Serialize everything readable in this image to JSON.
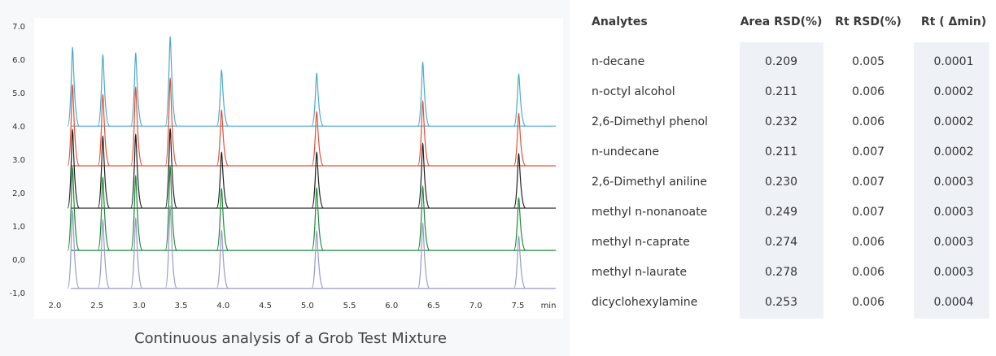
{
  "chart_data": {
    "type": "chromatogram",
    "caption": "Continuous analysis of a Grob Test Mixture",
    "x_label": "min",
    "xlim": [
      1.88,
      7.95
    ],
    "xticks": [
      {
        "value": 2,
        "label": "2.0"
      },
      2.5,
      {
        "value": 3,
        "label": "3.0"
      },
      3.5,
      {
        "value": 4,
        "label": "4.0"
      },
      4.5,
      {
        "value": 5,
        "label": "5.0"
      },
      5.5,
      {
        "value": 6,
        "label": "6.0"
      },
      6.5,
      {
        "value": 7,
        "label": "7.0"
      },
      7.5
    ],
    "ylim": [
      -1,
      7
    ],
    "yticks": [
      {
        "value": 7,
        "label": "7.0"
      },
      {
        "value": 6,
        "label": "6.0"
      },
      {
        "value": 5,
        "label": "5.0"
      },
      {
        "value": 4,
        "label": "4.0"
      },
      {
        "value": 3,
        "label": "3.0"
      },
      {
        "value": 2,
        "label": "2,0"
      },
      {
        "value": 1,
        "label": "1,0"
      },
      {
        "value": 0,
        "label": "0,0"
      },
      {
        "value": -1,
        "label": "-1,0"
      }
    ],
    "x": [
      2.21,
      2.57,
      2.96,
      3.37,
      3.98,
      5.11,
      6.37,
      7.51
    ],
    "series": [
      {
        "color": "#4fa9cc",
        "baseline": 4.02,
        "values": [
          6.39,
          6.17,
          6.22,
          6.71,
          5.71,
          5.61,
          5.95,
          5.59
        ]
      },
      {
        "color": "#e0533a",
        "baseline": 2.83,
        "values": [
          5.27,
          4.98,
          5.2,
          5.46,
          4.51,
          4.46,
          4.78,
          4.41
        ]
      },
      {
        "color": "#222222",
        "baseline": 1.56,
        "values": [
          3.93,
          3.73,
          3.78,
          3.95,
          3.24,
          3.24,
          3.51,
          3.2
        ]
      },
      {
        "color": "#1e8a3c",
        "baseline": 0.29,
        "values": [
          2.8,
          2.49,
          2.54,
          2.83,
          2.15,
          2.17,
          2.22,
          1.88
        ]
      },
      {
        "color": "#9a9ac8",
        "baseline": -0.85,
        "values": [
          1.51,
          1.22,
          1.27,
          1.63,
          0.9,
          0.88,
          1.12,
          0.73
        ]
      }
    ]
  },
  "table": {
    "header": [
      "Analytes",
      "Area RSD(%)",
      "Rt RSD(%)",
      "Rt ( Δmin)"
    ],
    "rows": [
      [
        "n-decane",
        "0.209",
        "0.005",
        "0.0001"
      ],
      [
        "n-octyl alcohol",
        "0.211",
        "0.006",
        "0.0002"
      ],
      [
        "2,6-Dimethyl phenol",
        "0.232",
        "0.006",
        "0.0002"
      ],
      [
        "n-undecane",
        "0.211",
        "0.007",
        "0.0002"
      ],
      [
        "2,6-Dimethyl aniline",
        "0.230",
        "0.007",
        "0.0003"
      ],
      [
        "methyl n-nonanoate",
        "0.249",
        "0.007",
        "0.0003"
      ],
      [
        "methyl n-caprate",
        "0.274",
        "0.006",
        "0.0003"
      ],
      [
        "methyl n-laurate",
        "0.278",
        "0.006",
        "0.0003"
      ],
      [
        "dicyclohexylamine",
        "0.253",
        "0.006",
        "0.0004"
      ]
    ]
  }
}
